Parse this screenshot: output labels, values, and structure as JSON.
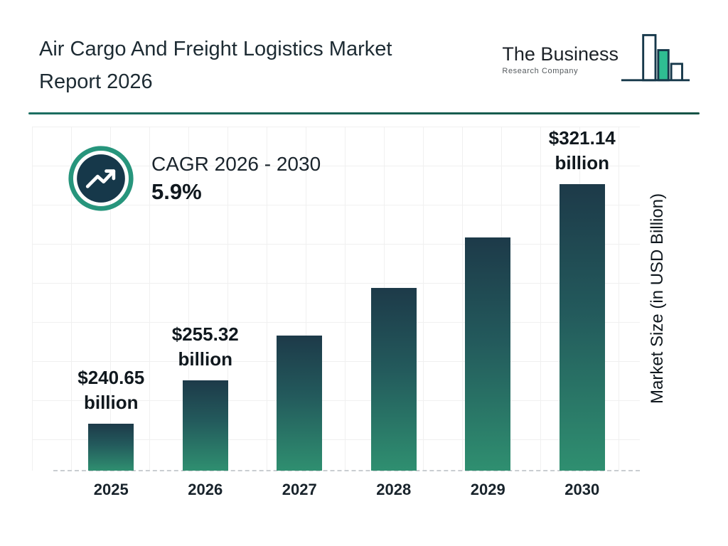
{
  "header": {
    "title_line1": "Air Cargo And Freight Logistics Market",
    "title_line2": "Report 2026",
    "logo": {
      "name_line1": "The Business",
      "name_line2": "Research Company"
    }
  },
  "cagr": {
    "label": "CAGR 2026 - 2030",
    "value": "5.9%"
  },
  "chart_data": {
    "type": "bar",
    "title": "Air Cargo And Freight Logistics Market Report 2026",
    "categories": [
      "2025",
      "2026",
      "2027",
      "2028",
      "2029",
      "2030"
    ],
    "values": [
      240.65,
      255.32,
      270.4,
      286.3,
      303.2,
      321.14
    ],
    "bar_labels": [
      {
        "amount": "$240.65",
        "unit": "billion"
      },
      {
        "amount": "$255.32",
        "unit": "billion"
      },
      null,
      null,
      null,
      {
        "amount": "$321.14",
        "unit": "billion"
      }
    ],
    "xlabel": "",
    "ylabel": "Market Size (in USD Billion)",
    "ylim": [
      225,
      330
    ],
    "grid": true,
    "legend": false
  },
  "colors": {
    "accent_teal": "#27957c",
    "dark_navy": "#16384a",
    "bar_gradient_top": "#1d3a49",
    "bar_gradient_bottom": "#2f8f70",
    "divider": "#1c6f62",
    "grid_line": "#f0f0f0",
    "text_dark": "#10181e",
    "logo_fill_teal": "#2fbd92"
  }
}
